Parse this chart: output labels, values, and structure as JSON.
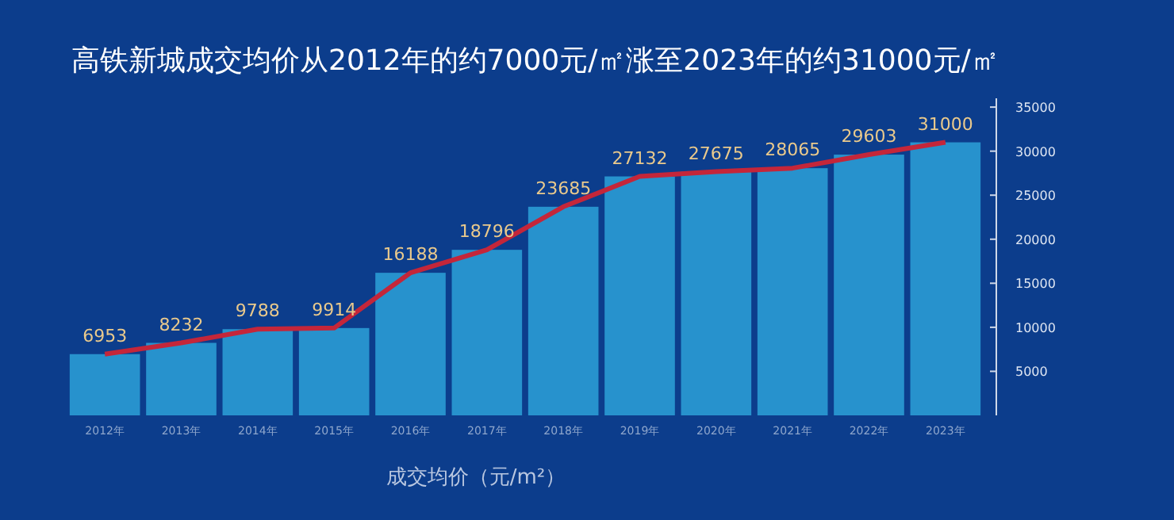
{
  "chart_data": {
    "type": "bar",
    "title": "高铁新城成交均价从2012年的约7000元/㎡涨至2023年的约31000元/㎡",
    "categories": [
      "2012年",
      "2013年",
      "2014年",
      "2015年",
      "2016年",
      "2017年",
      "2018年",
      "2019年",
      "2020年",
      "2021年",
      "2022年",
      "2023年"
    ],
    "series": [
      {
        "color": "#2a9bd4",
        "values": [
          6953,
          8232,
          9788,
          9914,
          16188,
          18796,
          23685,
          27132,
          27675,
          28065,
          29603,
          31000
        ]
      },
      {
        "type": "line",
        "color": "#c4263a",
        "values": [
          6953,
          8232,
          9788,
          9914,
          16188,
          18796,
          23685,
          27132,
          27675,
          28065,
          29603,
          31000
        ],
        "value_labels": [
          "6953",
          "8232",
          "9788",
          "9914",
          "16188",
          "18796",
          "23685",
          "27132",
          "27675",
          "28065",
          "29603",
          "31000"
        ]
      }
    ],
    "ylim": [
      0,
      36000
    ],
    "yticks": [
      5000,
      10000,
      15000,
      20000,
      25000,
      30000,
      35000
    ],
    "annotations": [
      "成交均价（元/m²）"
    ],
    "grid": false,
    "marker": "none"
  }
}
